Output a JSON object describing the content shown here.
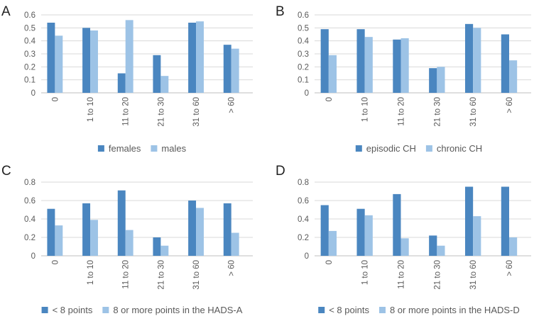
{
  "colors": {
    "series1": "#4a86c0",
    "series2": "#9dc3e6"
  },
  "chart_data": [
    {
      "panel": "A",
      "type": "bar",
      "categories": [
        "0",
        "1 to 10",
        "11 to 20",
        "21 to 30",
        "31 to 60",
        "> 60"
      ],
      "series": [
        {
          "name": "females",
          "values": [
            0.54,
            0.5,
            0.15,
            0.29,
            0.54,
            0.37
          ]
        },
        {
          "name": "males",
          "values": [
            0.44,
            0.48,
            0.56,
            0.13,
            0.55,
            0.34
          ]
        }
      ],
      "ylim": [
        0,
        0.6
      ],
      "yticks": [
        0,
        0.1,
        0.2,
        0.3,
        0.4,
        0.5,
        0.6
      ],
      "ytick_labels": [
        "0",
        "0.1",
        "0.2",
        "0.3",
        "0.4",
        "0.5",
        "0.6"
      ],
      "grid": true,
      "legend": "bottom"
    },
    {
      "panel": "B",
      "type": "bar",
      "categories": [
        "0",
        "1 to 10",
        "11 to 20",
        "21 to 30",
        "31 to 60",
        "> 60"
      ],
      "series": [
        {
          "name": "episodic CH",
          "values": [
            0.49,
            0.49,
            0.41,
            0.19,
            0.53,
            0.45
          ]
        },
        {
          "name": "chronic CH",
          "values": [
            0.29,
            0.43,
            0.42,
            0.2,
            0.5,
            0.25
          ]
        }
      ],
      "ylim": [
        0,
        0.6
      ],
      "yticks": [
        0,
        0.1,
        0.2,
        0.3,
        0.4,
        0.5,
        0.6
      ],
      "ytick_labels": [
        "0",
        "0.1",
        "0.2",
        "0.3",
        "0.4",
        "0.5",
        "0.6"
      ],
      "grid": true,
      "legend": "bottom"
    },
    {
      "panel": "C",
      "type": "bar",
      "categories": [
        "0",
        "1 to 10",
        "11 to 20",
        "21 to 30",
        "31 to 60",
        "> 60"
      ],
      "series": [
        {
          "name": "< 8 points",
          "values": [
            0.51,
            0.57,
            0.71,
            0.2,
            0.6,
            0.57
          ]
        },
        {
          "name": "8 or more points in the HADS-A",
          "values": [
            0.33,
            0.39,
            0.28,
            0.11,
            0.52,
            0.25
          ]
        }
      ],
      "ylim": [
        0,
        0.8
      ],
      "yticks": [
        0,
        0.2,
        0.4,
        0.6,
        0.8
      ],
      "ytick_labels": [
        "0",
        "0.2",
        "0.4",
        "0.6",
        "0.8"
      ],
      "grid": true,
      "legend": "bottom"
    },
    {
      "panel": "D",
      "type": "bar",
      "categories": [
        "0",
        "1 to 10",
        "11 to 20",
        "21 to 30",
        "31 to 60",
        "> 60"
      ],
      "series": [
        {
          "name": "< 8 points",
          "values": [
            0.55,
            0.51,
            0.67,
            0.22,
            0.75,
            0.75
          ]
        },
        {
          "name": "8 or more points in the HADS-D",
          "values": [
            0.27,
            0.44,
            0.19,
            0.11,
            0.43,
            0.2
          ]
        }
      ],
      "ylim": [
        0,
        0.8
      ],
      "yticks": [
        0,
        0.2,
        0.4,
        0.6,
        0.8
      ],
      "ytick_labels": [
        "0",
        "0.2",
        "0.4",
        "0.6",
        "0.8"
      ],
      "grid": true,
      "legend": "bottom"
    }
  ]
}
